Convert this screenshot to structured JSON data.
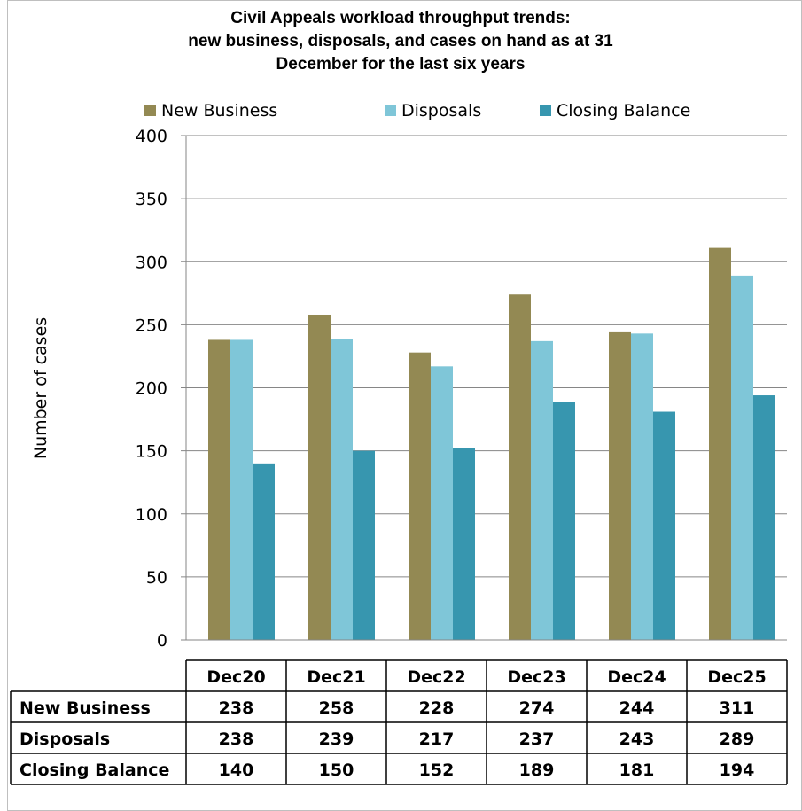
{
  "chart_data": {
    "type": "bar",
    "title_lines": [
      "Civil Appeals workload throughput trends:",
      "new business, disposals, and cases on hand as at 31",
      "December for the last six years"
    ],
    "ylabel": "Number of cases",
    "xlabel": "",
    "ylim": [
      0,
      400
    ],
    "yticks": [
      0,
      50,
      100,
      150,
      200,
      250,
      300,
      350,
      400
    ],
    "grid": true,
    "legend_position": "top",
    "categories": [
      "Dec20",
      "Dec21",
      "Dec22",
      "Dec23",
      "Dec24",
      "Dec25"
    ],
    "series": [
      {
        "name": "New Business",
        "color": "#938953",
        "values": [
          238,
          258,
          228,
          274,
          244,
          311
        ]
      },
      {
        "name": "Disposals",
        "color": "#7FC6D8",
        "values": [
          238,
          239,
          217,
          237,
          243,
          289
        ]
      },
      {
        "name": "Closing Balance",
        "color": "#3796AF",
        "values": [
          140,
          150,
          152,
          189,
          181,
          194
        ]
      }
    ],
    "data_table": true
  }
}
